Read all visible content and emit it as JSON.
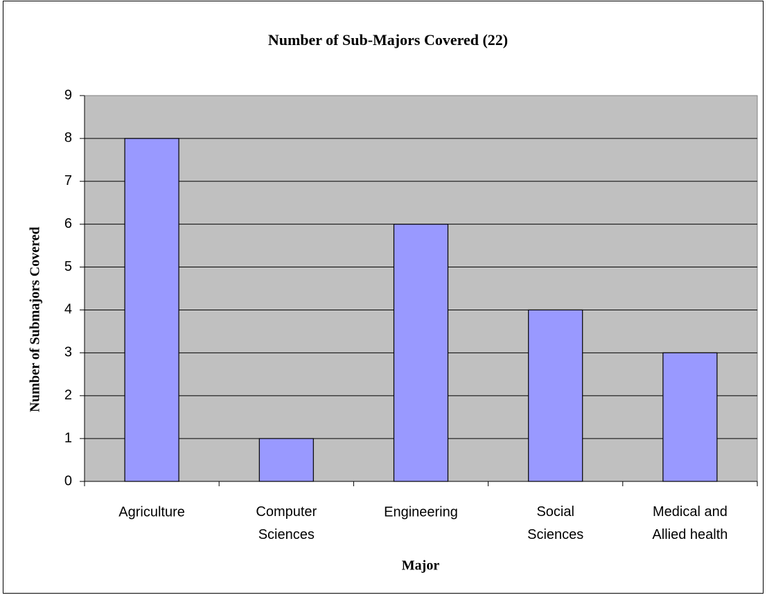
{
  "chart_data": {
    "type": "bar",
    "title": "Number of  Sub-Majors Covered (22)",
    "x_label": "Major",
    "y_label": "Number of Submajors Covered",
    "categories": [
      "Agriculture",
      "Computer\nSciences",
      "Engineering",
      "Social\nSciences",
      "Medical and\nAllied health"
    ],
    "values": [
      8,
      1,
      6,
      4,
      3
    ],
    "color": "#9999ff",
    "ylim": [
      0,
      9
    ],
    "yticks": [
      0,
      1,
      2,
      3,
      4,
      5,
      6,
      7,
      8,
      9
    ],
    "grid": true
  }
}
